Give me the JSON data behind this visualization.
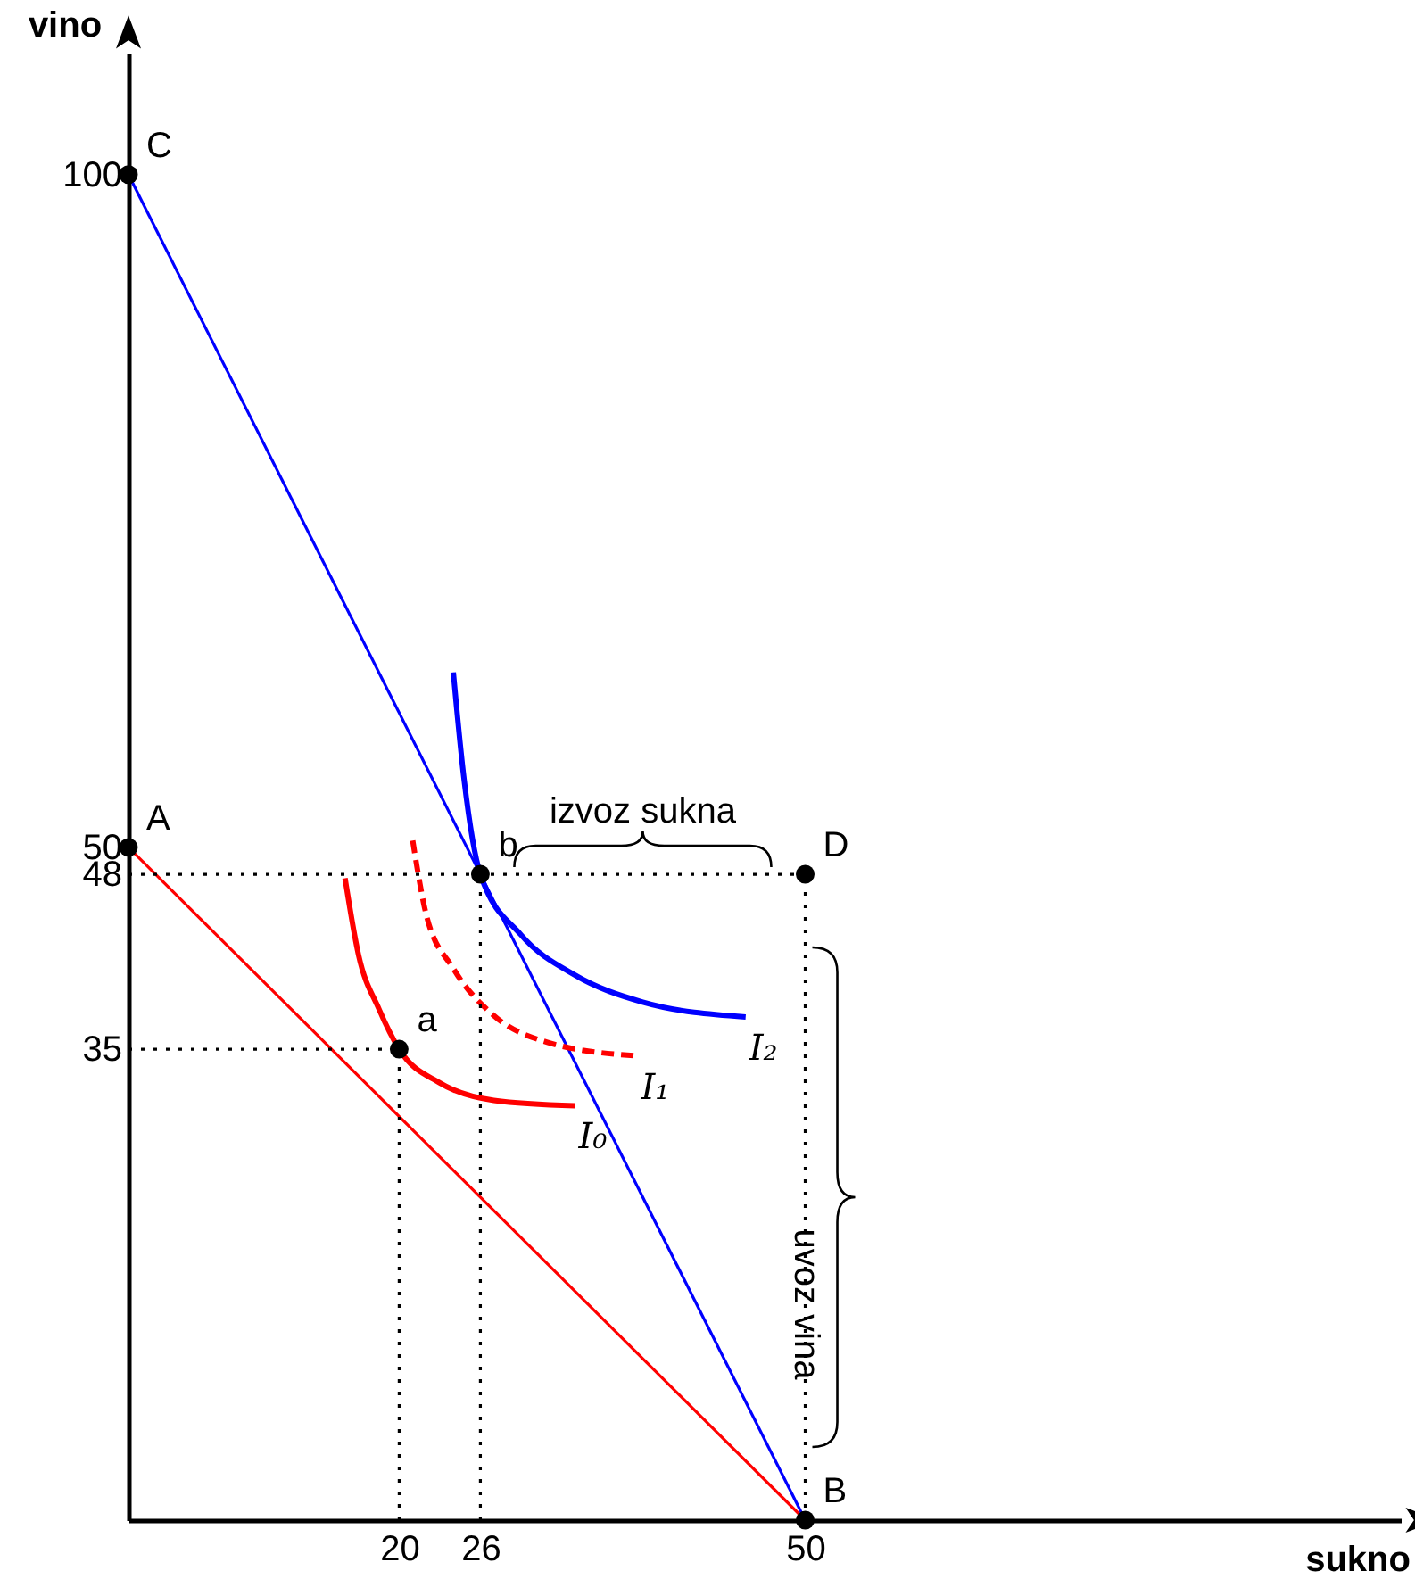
{
  "chart_data": {
    "type": "line",
    "xlabel": "sukno",
    "ylabel": "vino",
    "xlim": [
      0,
      94
    ],
    "ylim": [
      0,
      109
    ],
    "xticks": [
      20,
      26,
      50
    ],
    "yticks": [
      35,
      48,
      50,
      100
    ],
    "grid": false,
    "series": [
      {
        "color": "#ff0000",
        "x": [
          0,
          50
        ],
        "values": [
          50,
          0
        ]
      },
      {
        "color": "#0000ff",
        "x": [
          0,
          50
        ],
        "values": [
          100,
          0
        ]
      },
      {
        "name": "I₀",
        "color": "#ff0000",
        "x": [
          16,
          17,
          18.5,
          20,
          23,
          27,
          33
        ],
        "values": [
          47.7,
          42,
          38,
          35,
          32.5,
          31.2,
          30.8
        ]
      },
      {
        "name": "I₁",
        "color": "#ff0000",
        "line_style": "dashed",
        "x": [
          21,
          22,
          24,
          27,
          31,
          37.6
        ],
        "values": [
          50.5,
          45,
          41,
          37.5,
          35.5,
          34.5
        ]
      },
      {
        "name": "I₂",
        "color": "#0000ff",
        "x": [
          24,
          24.8,
          26,
          29,
          33,
          38,
          45.6
        ],
        "values": [
          63,
          55,
          48,
          43.5,
          40.5,
          38.5,
          37.4
        ]
      },
      {
        "color": "#000000",
        "line_style": "dotted",
        "x": [
          0,
          50
        ],
        "values": [
          48,
          48
        ]
      },
      {
        "color": "#000000",
        "line_style": "dotted",
        "x": [
          0,
          20
        ],
        "values": [
          35,
          35
        ]
      },
      {
        "color": "#000000",
        "line_style": "dotted",
        "x": [
          20,
          20
        ],
        "values": [
          0,
          35
        ]
      },
      {
        "color": "#000000",
        "line_style": "dotted",
        "x": [
          26,
          26
        ],
        "values": [
          0,
          48
        ]
      },
      {
        "color": "#000000",
        "line_style": "dotted",
        "x": [
          50,
          50
        ],
        "values": [
          0,
          48
        ]
      },
      {
        "type": "scatter",
        "marker": "circle",
        "color": "#000000",
        "x": [
          0,
          0,
          50,
          20,
          26,
          50
        ],
        "values": [
          100,
          50,
          0,
          35,
          48,
          48
        ]
      }
    ],
    "annotations": [
      {
        "text": "C",
        "x": 0,
        "y": 100
      },
      {
        "text": "A",
        "x": 0,
        "y": 50
      },
      {
        "text": "B",
        "x": 50,
        "y": 0
      },
      {
        "text": "a",
        "x": 20,
        "y": 35
      },
      {
        "text": "b",
        "x": 26,
        "y": 48
      },
      {
        "text": "D",
        "x": 50,
        "y": 48
      },
      {
        "text": "izvoz sukna",
        "x": 38,
        "y": 48
      },
      {
        "text": "uvoz vina",
        "x": 50,
        "y": 24
      }
    ]
  }
}
